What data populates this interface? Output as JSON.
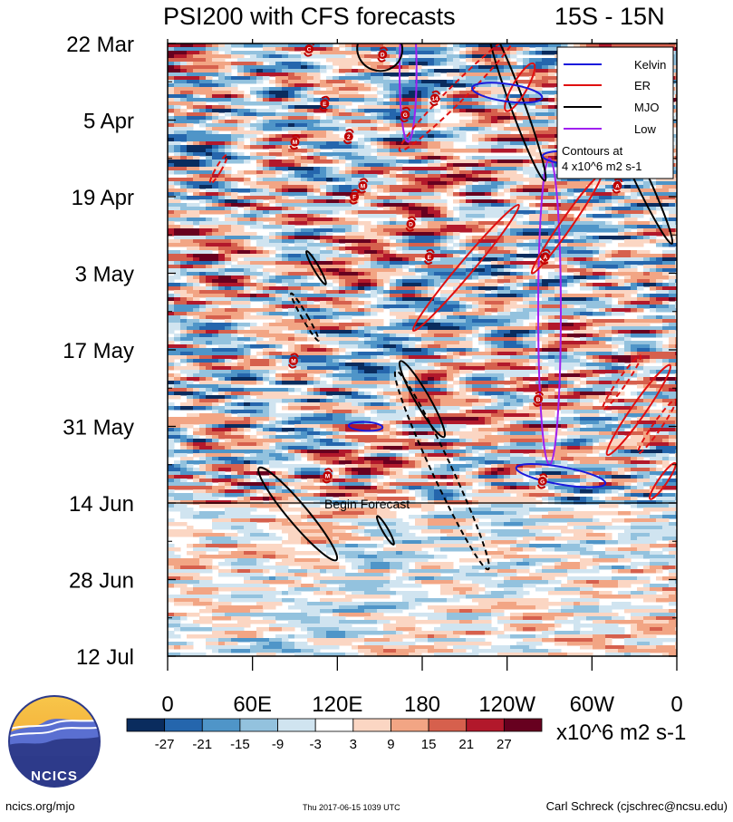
{
  "chart_data": {
    "type": "heatmap",
    "title": "PSI200 with CFS forecasts",
    "region": "15S - 15N",
    "x_axis": {
      "tick_labels": [
        "0",
        "60E",
        "120E",
        "180",
        "120W",
        "60W",
        "0"
      ],
      "range_deg": [
        0,
        360
      ]
    },
    "y_axis": {
      "tick_labels": [
        "22 Mar",
        "5 Apr",
        "19 Apr",
        "3 May",
        "17 May",
        "31 May",
        "14 Jun",
        "28 Jun",
        "12 Jul"
      ],
      "range_days": [
        0,
        112
      ]
    },
    "forecast_line": {
      "day": 84,
      "label": "Begin Forecast"
    },
    "legend": {
      "position": "top-right",
      "items": [
        {
          "label": "Kelvin",
          "color": "#1a1adc"
        },
        {
          "label": "ER",
          "color": "#e01010"
        },
        {
          "label": "MJO",
          "color": "#000000"
        },
        {
          "label": "Low",
          "color": "#a020f0"
        }
      ],
      "note_line1": "Contours at",
      "note_line2": "4 x10^6 m2 s-1"
    },
    "colorbar": {
      "tick_labels": [
        "-27",
        "-21",
        "-15",
        "-9",
        "-3",
        "3",
        "9",
        "15",
        "21",
        "27"
      ],
      "colors": [
        "#0a2c5e",
        "#2566ad",
        "#4f95c8",
        "#93c2de",
        "#d0e4f0",
        "#ffffff",
        "#fbd6c3",
        "#f2a584",
        "#d6604d",
        "#b2182b",
        "#67001f"
      ],
      "unit_label": "x10^6 m2 s-1"
    },
    "wave_contours": [
      {
        "wave": "Low",
        "style": "solid",
        "lon": 170,
        "day": 5,
        "lon_radius": 6,
        "day_radius": 13,
        "tilt": 0
      },
      {
        "wave": "Low",
        "style": "solid",
        "lon": 270,
        "day": 49,
        "lon_radius": 8,
        "day_radius": 28,
        "tilt": 0
      },
      {
        "wave": "MJO",
        "style": "solid",
        "lon": 150,
        "day": 1,
        "lon_radius": 16,
        "day_radius": 4,
        "tilt": 20
      },
      {
        "wave": "MJO",
        "style": "solid",
        "lon": 247,
        "day": 11,
        "lon_radius": 5,
        "day_radius": 15,
        "tilt": -20
      },
      {
        "wave": "MJO",
        "style": "solid",
        "lon": 332,
        "day": 23,
        "lon_radius": 5,
        "day_radius": 15,
        "tilt": -25
      },
      {
        "wave": "MJO",
        "style": "solid",
        "lon": 105,
        "day": 41,
        "lon_radius": 2,
        "day_radius": 3.5,
        "tilt": -30
      },
      {
        "wave": "MJO",
        "style": "solid",
        "lon": 180,
        "day": 65,
        "lon_radius": 5,
        "day_radius": 8,
        "tilt": -30
      },
      {
        "wave": "MJO",
        "style": "solid",
        "lon": 92,
        "day": 86,
        "lon_radius": 7,
        "day_radius": 11,
        "tilt": -40
      },
      {
        "wave": "MJO",
        "style": "solid",
        "lon": 154,
        "day": 89,
        "lon_radius": 2,
        "day_radius": 3,
        "tilt": -30
      },
      {
        "wave": "MJO",
        "style": "dashed",
        "lon": 97,
        "day": 50,
        "lon_radius": 2,
        "day_radius": 5,
        "tilt": -30
      },
      {
        "wave": "MJO",
        "style": "dashed",
        "lon": 194,
        "day": 78,
        "lon_radius": 7,
        "day_radius": 20,
        "tilt": -25
      },
      {
        "wave": "ER",
        "style": "solid",
        "lon": 249,
        "day": 8,
        "lon_radius": 5,
        "day_radius": 5,
        "tilt": 30
      },
      {
        "wave": "ER",
        "style": "solid",
        "lon": 211,
        "day": 41,
        "lon_radius": 5,
        "day_radius": 15,
        "tilt": 40
      },
      {
        "wave": "ER",
        "style": "solid",
        "lon": 282,
        "day": 33,
        "lon_radius": 4,
        "day_radius": 11,
        "tilt": 35
      },
      {
        "wave": "ER",
        "style": "solid",
        "lon": 333,
        "day": 67,
        "lon_radius": 5,
        "day_radius": 10,
        "tilt": 35
      },
      {
        "wave": "ER",
        "style": "solid",
        "lon": 350,
        "day": 80,
        "lon_radius": 3,
        "day_radius": 4,
        "tilt": 35
      },
      {
        "wave": "ER",
        "style": "dashed",
        "lon": 205,
        "day": 9,
        "lon_radius": 6,
        "day_radius": 15,
        "tilt": 45
      },
      {
        "wave": "ER",
        "style": "dashed",
        "lon": 36,
        "day": 23,
        "lon_radius": 2,
        "day_radius": 3,
        "tilt": 30
      },
      {
        "wave": "ER",
        "style": "dashed",
        "lon": 321,
        "day": 62,
        "lon_radius": 3,
        "day_radius": 6,
        "tilt": 35
      },
      {
        "wave": "ER",
        "style": "dashed",
        "lon": 346,
        "day": 70,
        "lon_radius": 3,
        "day_radius": 6,
        "tilt": 35
      },
      {
        "wave": "Kelvin",
        "style": "solid",
        "lon": 240,
        "day": 9,
        "lon_radius": 25,
        "day_radius": 1.6,
        "tilt": 8
      },
      {
        "wave": "Kelvin",
        "style": "solid",
        "lon": 290,
        "day": 21,
        "lon_radius": 25,
        "day_radius": 1.3,
        "tilt": 4
      },
      {
        "wave": "Kelvin",
        "style": "solid",
        "lon": 278,
        "day": 79,
        "lon_radius": 32,
        "day_radius": 1.6,
        "tilt": 10
      },
      {
        "wave": "Kelvin",
        "style": "solid",
        "lon": 140,
        "day": 70,
        "lon_radius": 12,
        "day_radius": 0.8,
        "tilt": 3
      }
    ],
    "storm_markers": [
      {
        "letter": "C",
        "lon": 100,
        "day": 1
      },
      {
        "letter": "D",
        "lon": 152,
        "day": 2
      },
      {
        "letter": "E",
        "lon": 111,
        "day": 11
      },
      {
        "letter": "14",
        "lon": 189,
        "day": 10
      },
      {
        "letter": "G",
        "lon": 168,
        "day": 13
      },
      {
        "letter": "M",
        "lon": 90,
        "day": 18
      },
      {
        "letter": "2",
        "lon": 128,
        "day": 17
      },
      {
        "letter": "A",
        "lon": 318,
        "day": 26
      },
      {
        "letter": "M",
        "lon": 138,
        "day": 26
      },
      {
        "letter": "F",
        "lon": 132,
        "day": 28
      },
      {
        "letter": "D",
        "lon": 172,
        "day": 33
      },
      {
        "letter": "E",
        "lon": 185,
        "day": 39
      },
      {
        "letter": "A",
        "lon": 267,
        "day": 39
      },
      {
        "letter": "M",
        "lon": 89,
        "day": 58
      },
      {
        "letter": "B",
        "lon": 262,
        "day": 65
      },
      {
        "letter": "M",
        "lon": 113,
        "day": 79
      },
      {
        "letter": "G",
        "lon": 265,
        "day": 80
      }
    ]
  },
  "footer": {
    "left": "ncics.org/mjo",
    "center": "Thu 2017-06-15 1039 UTC",
    "right": "Carl Schreck (cjschrec@ncsu.edu)"
  },
  "logo": {
    "text": "NCICS"
  }
}
